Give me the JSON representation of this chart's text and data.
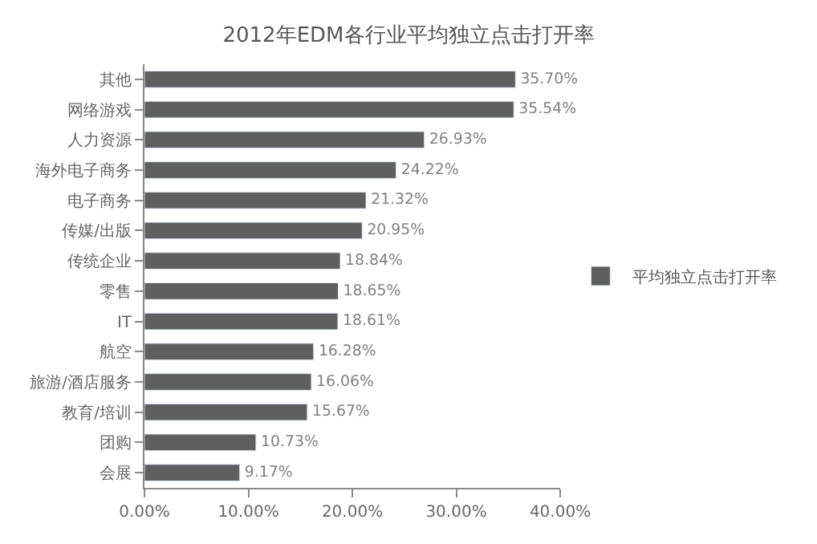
{
  "chart_data": {
    "type": "bar",
    "orientation": "horizontal",
    "title": "2012年EDM各行业平均独立点击打开率",
    "categories": [
      "其他",
      "网络游戏",
      "人力资源",
      "海外电子商务",
      "电子商务",
      "传媒/出版",
      "传统企业",
      "零售",
      "IT",
      "航空",
      "旅游/酒店服务",
      "教育/培训",
      "团购",
      "会展"
    ],
    "series": [
      {
        "name": "平均独立点击打开率",
        "color": "#5f5f5f",
        "values": [
          35.7,
          35.54,
          26.93,
          24.22,
          21.32,
          20.95,
          18.84,
          18.65,
          18.61,
          16.28,
          16.06,
          15.67,
          10.73,
          9.17
        ],
        "value_labels": [
          "35.70%",
          "35.54%",
          "26.93%",
          "24.22%",
          "21.32%",
          "20.95%",
          "18.84%",
          "18.65%",
          "18.61%",
          "16.28%",
          "16.06%",
          "15.67%",
          "10.73%",
          "9.17%"
        ]
      }
    ],
    "xlim": [
      0,
      40
    ],
    "xticks": [
      {
        "value": 0,
        "label": "0.00%"
      },
      {
        "value": 10,
        "label": "10.00%"
      },
      {
        "value": 20,
        "label": "20.00%"
      },
      {
        "value": 30,
        "label": "30.00%"
      },
      {
        "value": 40,
        "label": "40.00%"
      }
    ],
    "legend": "right"
  }
}
